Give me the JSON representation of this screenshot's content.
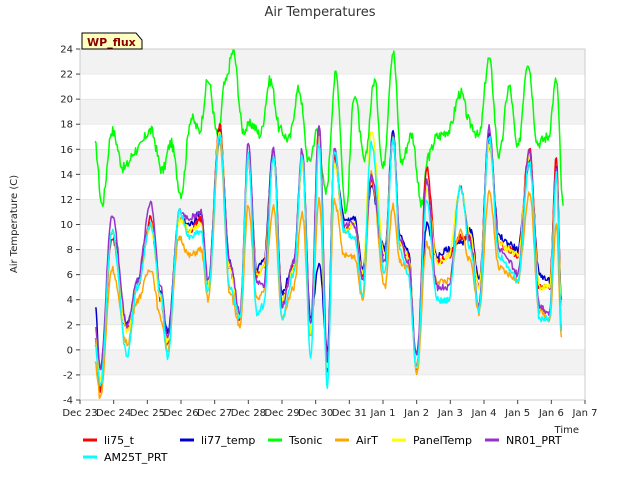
{
  "chart_data": {
    "type": "line",
    "title": "Air Temperatures",
    "xlabel": "Time",
    "ylabel": "Air Temperature (C)",
    "badge": "WP_flux",
    "ylim": [
      -4,
      24
    ],
    "yticks": [
      -4,
      -2,
      0,
      2,
      4,
      6,
      8,
      10,
      12,
      14,
      16,
      18,
      20,
      22,
      24
    ],
    "xlim": [
      0,
      15
    ],
    "xtick_labels": [
      "Dec 23",
      "Dec 24",
      "Dec 25",
      "Dec 26",
      "Dec 27",
      "Dec 28",
      "Dec 29",
      "Dec 30",
      "Dec 31",
      "Jan 1",
      "Jan 2",
      "Jan 3",
      "Jan 4",
      "Jan 5",
      "Jan 6",
      "Jan 7"
    ],
    "grid": "horizontal bands",
    "legend_position": "bottom",
    "daily_points": {
      "Tsonic": {
        "x": [
          0.45,
          0.65,
          0.95,
          1.3,
          1.7,
          2.1,
          2.45,
          2.7,
          3.0,
          3.3,
          3.55,
          3.8,
          4.1,
          4.3,
          4.55,
          4.85,
          5.1,
          5.35,
          5.65,
          5.95,
          6.2,
          6.5,
          6.8,
          7.05,
          7.3,
          7.6,
          7.9,
          8.15,
          8.45,
          8.75,
          9.0,
          9.3,
          9.55,
          9.85,
          10.15,
          10.35,
          10.6,
          10.95,
          11.3,
          11.6,
          11.85,
          12.15,
          12.45,
          12.75,
          13.0,
          13.3,
          13.6,
          13.9,
          14.15,
          14.35
        ],
        "y": [
          16.3,
          11.6,
          17.5,
          14.5,
          16.0,
          17.5,
          14.3,
          16.5,
          12.5,
          18.5,
          17.5,
          21.5,
          17.0,
          21.2,
          23.8,
          17.5,
          18.0,
          17.2,
          21.5,
          17.5,
          16.8,
          20.8,
          15.0,
          17.5,
          12.5,
          22.0,
          11.0,
          20.5,
          15.0,
          21.5,
          14.5,
          23.8,
          15.0,
          17.2,
          11.5,
          15.5,
          17.0,
          17.5,
          20.5,
          18.0,
          17.0,
          23.2,
          15.5,
          21.0,
          16.0,
          23.0,
          16.5,
          17.0,
          21.5,
          11.5
        ]
      },
      "li77_temp": {
        "x": [
          0.45,
          0.6,
          0.95,
          1.4,
          1.7,
          2.1,
          2.4,
          2.6,
          2.95,
          3.25,
          3.6,
          3.8,
          4.15,
          4.45,
          4.75,
          5.0,
          5.25,
          5.45,
          5.75,
          6.0,
          6.35,
          6.6,
          6.85,
          7.1,
          7.35,
          7.55,
          7.85,
          8.15,
          8.4,
          8.65,
          9.05,
          9.3,
          9.5,
          9.75,
          10.0,
          10.3,
          10.6,
          10.95,
          11.3,
          11.6,
          11.85,
          12.15,
          12.45,
          12.75,
          13.0,
          13.35,
          13.65,
          13.95,
          14.15,
          14.3
        ],
        "y": [
          3.5,
          -1.5,
          9.5,
          2.0,
          5.5,
          10.0,
          4.5,
          1.5,
          10.5,
          10.0,
          11.0,
          5.0,
          17.5,
          7.0,
          2.5,
          15.5,
          6.5,
          7.0,
          16.0,
          4.5,
          7.0,
          15.5,
          2.5,
          7.0,
          0.0,
          15.5,
          10.5,
          10.5,
          6.5,
          13.0,
          8.0,
          17.5,
          9.0,
          8.0,
          -1.5,
          10.0,
          7.5,
          8.0,
          8.5,
          9.5,
          5.5,
          17.0,
          9.0,
          8.5,
          8.0,
          15.0,
          6.0,
          5.5,
          14.5,
          4.0
        ]
      },
      "li75_t": {
        "x": [
          0.45,
          0.6,
          0.95,
          1.4,
          1.7,
          2.1,
          2.4,
          2.6,
          2.95,
          3.25,
          3.6,
          3.8,
          4.15,
          4.45,
          4.75,
          5.0,
          5.25,
          5.45,
          5.75,
          6.0,
          6.35,
          6.6,
          6.85,
          7.1,
          7.35,
          7.55,
          7.85,
          8.15,
          8.4,
          8.65,
          9.05,
          9.3,
          9.5,
          9.75,
          10.0,
          10.3,
          10.6,
          10.95,
          11.3,
          11.6,
          11.85,
          12.15,
          12.45,
          12.75,
          13.0,
          13.35,
          13.65,
          13.95,
          14.15,
          14.3
        ],
        "y": [
          1.0,
          -3.2,
          9.0,
          1.5,
          5.0,
          10.5,
          4.0,
          0.5,
          10.5,
          9.5,
          10.5,
          5.0,
          18.0,
          6.5,
          2.5,
          15.0,
          6.0,
          6.5,
          15.5,
          4.0,
          6.5,
          15.0,
          1.5,
          18.0,
          -1.5,
          15.5,
          9.5,
          10.0,
          6.0,
          13.5,
          7.5,
          17.0,
          8.5,
          7.5,
          -1.5,
          14.5,
          7.0,
          7.5,
          9.0,
          9.0,
          5.0,
          16.5,
          8.5,
          8.0,
          7.5,
          16.0,
          5.0,
          5.0,
          15.5,
          3.5
        ]
      },
      "AirT": {
        "x": [
          0.45,
          0.6,
          0.95,
          1.4,
          1.7,
          2.1,
          2.4,
          2.6,
          2.95,
          3.25,
          3.6,
          3.8,
          4.15,
          4.45,
          4.75,
          5.0,
          5.25,
          5.45,
          5.75,
          6.0,
          6.35,
          6.6,
          6.85,
          7.1,
          7.35,
          7.55,
          7.85,
          8.15,
          8.4,
          8.65,
          9.05,
          9.3,
          9.5,
          9.75,
          10.0,
          10.3,
          10.6,
          10.95,
          11.3,
          11.6,
          11.85,
          12.15,
          12.45,
          12.75,
          13.0,
          13.35,
          13.65,
          13.95,
          14.15,
          14.3
        ],
        "y": [
          -1.0,
          -3.8,
          6.5,
          0.5,
          4.0,
          6.5,
          2.5,
          0.0,
          9.0,
          7.5,
          8.0,
          4.0,
          16.5,
          4.5,
          2.0,
          11.5,
          4.0,
          4.5,
          11.5,
          2.5,
          5.0,
          11.0,
          1.0,
          12.0,
          -1.5,
          12.0,
          7.5,
          7.5,
          4.0,
          14.0,
          5.0,
          11.5,
          7.0,
          6.5,
          -2.0,
          8.5,
          5.5,
          5.5,
          9.5,
          7.0,
          3.0,
          12.5,
          6.5,
          6.0,
          5.5,
          12.5,
          3.0,
          2.5,
          10.0,
          1.0
        ]
      },
      "PanelTemp": {
        "x": [
          0.45,
          0.6,
          0.95,
          1.4,
          1.7,
          2.1,
          2.4,
          2.6,
          2.95,
          3.25,
          3.6,
          3.8,
          4.15,
          4.45,
          4.75,
          5.0,
          5.25,
          5.45,
          5.75,
          6.0,
          6.35,
          6.6,
          6.85,
          7.1,
          7.35,
          7.55,
          7.85,
          8.15,
          8.4,
          8.65,
          9.05,
          9.3,
          9.5,
          9.75,
          10.0,
          10.3,
          10.6,
          10.95,
          11.3,
          11.6,
          11.85,
          12.15,
          12.45,
          12.75,
          13.0,
          13.35,
          13.65,
          13.95,
          14.15,
          14.3
        ],
        "y": [
          1.5,
          -2.5,
          9.5,
          1.5,
          5.0,
          10.0,
          4.0,
          0.5,
          10.5,
          9.5,
          10.0,
          5.0,
          17.5,
          6.5,
          2.5,
          15.0,
          6.0,
          6.5,
          15.5,
          4.0,
          6.5,
          15.0,
          1.5,
          17.0,
          -1.5,
          15.0,
          9.5,
          10.0,
          6.0,
          17.5,
          7.5,
          17.0,
          8.5,
          7.5,
          -1.5,
          13.0,
          7.0,
          7.5,
          13.0,
          9.0,
          5.0,
          16.5,
          8.5,
          8.0,
          7.5,
          15.5,
          5.0,
          5.0,
          14.0,
          3.5
        ]
      },
      "NR01_PRT": {
        "x": [
          0.45,
          0.6,
          0.95,
          1.4,
          1.7,
          2.1,
          2.4,
          2.6,
          2.95,
          3.25,
          3.6,
          3.8,
          4.15,
          4.45,
          4.75,
          5.0,
          5.25,
          5.45,
          5.75,
          6.0,
          6.35,
          6.6,
          6.85,
          7.1,
          7.35,
          7.55,
          7.85,
          8.15,
          8.4,
          8.65,
          9.05,
          9.3,
          9.5,
          9.75,
          10.0,
          10.3,
          10.6,
          10.95,
          11.3,
          11.6,
          11.85,
          12.15,
          12.45,
          12.75,
          13.0,
          13.35,
          13.65,
          13.95,
          14.15,
          14.3
        ],
        "y": [
          2.0,
          -1.5,
          10.8,
          2.0,
          5.5,
          11.8,
          5.0,
          1.0,
          11.0,
          10.5,
          11.0,
          5.5,
          17.0,
          7.0,
          3.0,
          16.5,
          5.5,
          5.0,
          16.0,
          3.5,
          7.0,
          16.0,
          2.0,
          18.0,
          -1.0,
          16.0,
          10.0,
          10.0,
          5.5,
          14.0,
          7.0,
          17.0,
          9.0,
          7.0,
          -0.5,
          13.5,
          5.0,
          5.0,
          13.0,
          8.5,
          3.5,
          17.8,
          8.0,
          7.0,
          6.0,
          16.0,
          3.5,
          3.0,
          14.5,
          1.5
        ]
      },
      "AM25T_PRT": {
        "x": [
          0.45,
          0.6,
          0.95,
          1.4,
          1.7,
          2.1,
          2.4,
          2.6,
          2.95,
          3.25,
          3.6,
          3.8,
          4.15,
          4.45,
          4.75,
          5.0,
          5.25,
          5.45,
          5.75,
          6.0,
          6.35,
          6.6,
          6.85,
          7.1,
          7.35,
          7.55,
          7.85,
          8.15,
          8.4,
          8.65,
          9.05,
          9.3,
          9.5,
          9.75,
          10.0,
          10.3,
          10.6,
          10.95,
          11.3,
          11.6,
          11.85,
          12.15,
          12.45,
          12.75,
          13.0,
          13.35,
          13.65,
          13.95,
          14.15,
          14.3
        ],
        "y": [
          0.5,
          -3.0,
          9.5,
          -0.5,
          5.0,
          10.0,
          4.5,
          -0.5,
          11.0,
          9.0,
          9.5,
          4.5,
          17.0,
          5.0,
          2.5,
          15.5,
          3.0,
          3.5,
          15.5,
          2.5,
          6.0,
          15.5,
          -0.5,
          16.5,
          -3.0,
          16.0,
          9.5,
          9.0,
          4.5,
          16.5,
          6.0,
          17.0,
          8.0,
          6.0,
          -1.5,
          12.0,
          4.0,
          4.0,
          13.0,
          8.0,
          3.0,
          17.0,
          7.5,
          6.5,
          5.5,
          15.0,
          2.5,
          2.5,
          14.0,
          1.5
        ]
      }
    },
    "series": [
      {
        "name": "li75_t",
        "color": "#ff0000"
      },
      {
        "name": "li77_temp",
        "color": "#0000cd"
      },
      {
        "name": "Tsonic",
        "color": "#00ff00"
      },
      {
        "name": "AirT",
        "color": "#ffa500"
      },
      {
        "name": "PanelTemp",
        "color": "#ffff00"
      },
      {
        "name": "NR01_PRT",
        "color": "#9932cc"
      },
      {
        "name": "AM25T_PRT",
        "color": "#00ffff"
      }
    ],
    "draw_order": [
      "Tsonic",
      "li77_temp",
      "li75_t",
      "AirT",
      "PanelTemp",
      "NR01_PRT",
      "AM25T_PRT"
    ]
  }
}
